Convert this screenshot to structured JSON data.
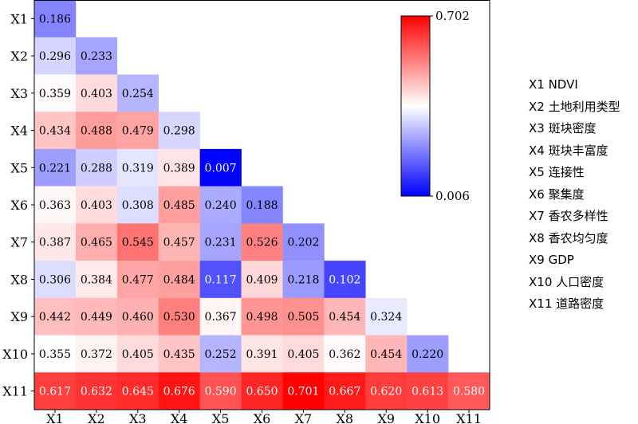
{
  "chart_data": {
    "type": "heatmap",
    "row_labels": [
      "X1",
      "X2",
      "X3",
      "X4",
      "X5",
      "X6",
      "X7",
      "X8",
      "X9",
      "X10",
      "X11"
    ],
    "col_labels": [
      "X1",
      "X2",
      "X3",
      "X4",
      "X5",
      "X6",
      "X7",
      "X8",
      "X9",
      "X10",
      "X11"
    ],
    "values": [
      [
        "0.186"
      ],
      [
        "0.296",
        "0.233"
      ],
      [
        "0.359",
        "0.403",
        "0.254"
      ],
      [
        "0.434",
        "0.488",
        "0.479",
        "0.298"
      ],
      [
        "0.221",
        "0.288",
        "0.319",
        "0.389",
        "0.007"
      ],
      [
        "0.363",
        "0.403",
        "0.308",
        "0.485",
        "0.240",
        "0.188"
      ],
      [
        "0.387",
        "0.465",
        "0.545",
        "0.457",
        "0.231",
        "0.526",
        "0.202"
      ],
      [
        "0.306",
        "0.384",
        "0.477",
        "0.484",
        "0.117",
        "0.409",
        "0.218",
        "0.102"
      ],
      [
        "0.442",
        "0.449",
        "0.460",
        "0.530",
        "0.367",
        "0.498",
        "0.505",
        "0.454",
        "0.324"
      ],
      [
        "0.355",
        "0.372",
        "0.405",
        "0.435",
        "0.252",
        "0.391",
        "0.405",
        "0.362",
        "0.454",
        "0.220"
      ],
      [
        "0.617",
        "0.632",
        "0.645",
        "0.676",
        "0.590",
        "0.650",
        "0.701",
        "0.667",
        "0.620",
        "0.613",
        "0.580"
      ]
    ],
    "colorbar": {
      "min": 0.006,
      "max": 0.702,
      "min_label": "0.006",
      "max_label": "0.702"
    },
    "colors": {
      "low": "#0000ff",
      "mid": "#ffffff",
      "high": "#ff0000"
    },
    "legend": [
      "X1 NDVI",
      "X2 土地利用类型",
      "X3 斑块密度",
      "X4 斑块丰富度",
      "X5 连接性",
      "X6 聚集度",
      "X7 香农多样性",
      "X8 香农均匀度",
      "X9 GDP",
      "X10 人口密度",
      "X11 道路密度"
    ],
    "legend_placement": "right"
  }
}
